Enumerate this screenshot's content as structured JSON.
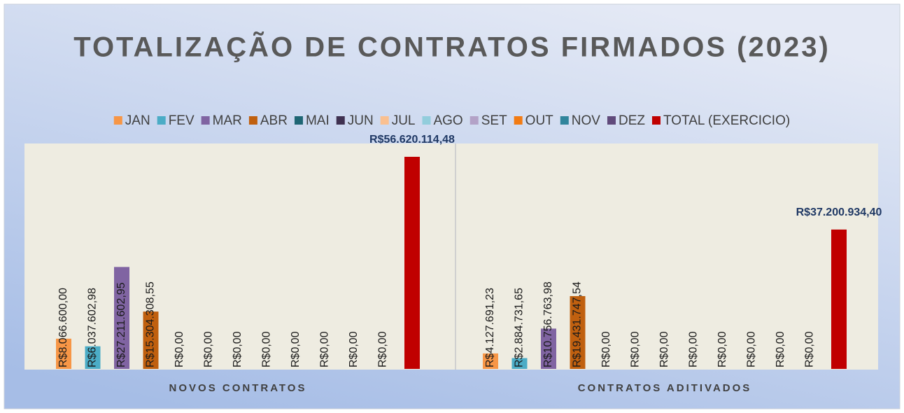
{
  "chart_data": {
    "type": "bar",
    "title": "TOTALIZAÇÃO DE CONTRATOS FIRMADOS (2023)",
    "categories": [
      "NOVOS CONTRATOS",
      "CONTRATOS ADITIVADOS"
    ],
    "series": [
      {
        "name": "JAN",
        "color": "#F79646",
        "values": [
          8066600.0,
          4127691.23
        ],
        "value_labels": [
          "R$8.066.600,00",
          "R$4.127.691,23"
        ]
      },
      {
        "name": "FEV",
        "color": "#4BACC6",
        "values": [
          6037602.98,
          2884731.65
        ],
        "value_labels": [
          "R$6.037.602,98",
          "R$2.884.731,65"
        ]
      },
      {
        "name": "MAR",
        "color": "#8064A2",
        "values": [
          27211602.95,
          10756763.98
        ],
        "value_labels": [
          "R$27.211.602,95",
          "R$10.756.763,98"
        ]
      },
      {
        "name": "ABR",
        "color": "#C0600F",
        "values": [
          15304308.55,
          19431747.54
        ],
        "value_labels": [
          "R$15.304.308,55",
          "R$19.431.747,54"
        ]
      },
      {
        "name": "MAI",
        "color": "#1F6674",
        "values": [
          0,
          0
        ],
        "value_labels": [
          "R$0,00",
          "R$0,00"
        ]
      },
      {
        "name": "JUN",
        "color": "#3F3151",
        "values": [
          0,
          0
        ],
        "value_labels": [
          "R$0,00",
          "R$0,00"
        ]
      },
      {
        "name": "JUL",
        "color": "#FAC090",
        "values": [
          0,
          0
        ],
        "value_labels": [
          "R$0,00",
          "R$0,00"
        ]
      },
      {
        "name": "AGO",
        "color": "#92CDDC",
        "values": [
          0,
          0
        ],
        "value_labels": [
          "R$0,00",
          "R$0,00"
        ]
      },
      {
        "name": "SET",
        "color": "#B3A2C7",
        "values": [
          0,
          0
        ],
        "value_labels": [
          "R$0,00",
          "R$0,00"
        ]
      },
      {
        "name": "OUT",
        "color": "#F27B13",
        "values": [
          0,
          0
        ],
        "value_labels": [
          "R$0,00",
          "R$0,00"
        ]
      },
      {
        "name": "NOV",
        "color": "#31859C",
        "values": [
          0,
          0
        ],
        "value_labels": [
          "R$0,00",
          "R$0,00"
        ]
      },
      {
        "name": "DEZ",
        "color": "#604A7B",
        "values": [
          0,
          0
        ],
        "value_labels": [
          "R$0,00",
          "R$0,00"
        ]
      },
      {
        "name": "TOTAL (EXERCICIO)",
        "color": "#C00000",
        "values": [
          56620114.48,
          37200934.4
        ],
        "value_labels": [
          "R$56.620.114,48",
          "R$37.200.934,40"
        ]
      }
    ]
  }
}
